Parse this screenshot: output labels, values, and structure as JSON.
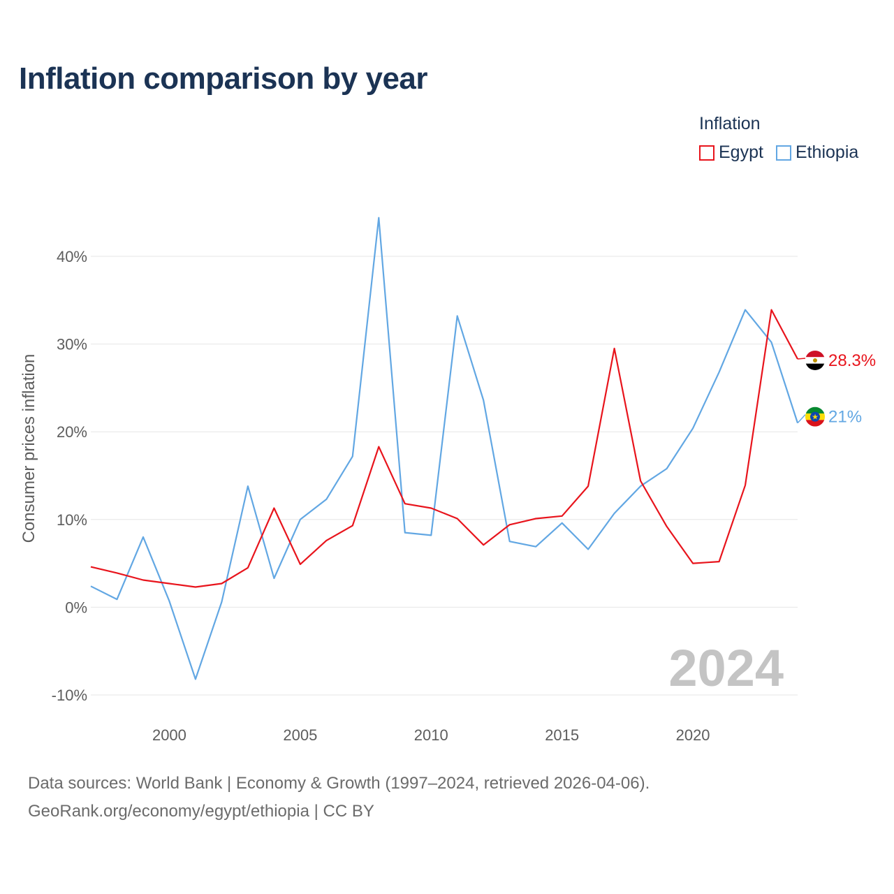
{
  "title": "Inflation comparison by year",
  "legend": {
    "title": "Inflation",
    "items": [
      {
        "name": "Egypt",
        "color": "#e8141c"
      },
      {
        "name": "Ethiopia",
        "color": "#62a7e3"
      }
    ]
  },
  "footer": {
    "line1": "Data sources: World Bank | Economy & Growth (1997–2024, retrieved 2026-04-06).",
    "line2": "GeoRank.org/economy/egypt/ethiopia | CC BY"
  },
  "chart_data": {
    "type": "line",
    "title": "Inflation comparison by year",
    "xlabel": "",
    "ylabel": "Consumer prices inflation",
    "xlim": [
      1997,
      2024
    ],
    "ylim": [
      -10,
      45
    ],
    "x_ticks": [
      2000,
      2005,
      2010,
      2015,
      2020
    ],
    "y_ticks": [
      -10,
      0,
      10,
      20,
      30,
      40
    ],
    "y_tick_labels": [
      "-10%",
      "0%",
      "10%",
      "20%",
      "30%",
      "40%"
    ],
    "grid": true,
    "watermark_year": "2024",
    "x": [
      1997,
      1998,
      1999,
      2000,
      2001,
      2002,
      2003,
      2004,
      2005,
      2006,
      2007,
      2008,
      2009,
      2010,
      2011,
      2012,
      2013,
      2014,
      2015,
      2016,
      2017,
      2018,
      2019,
      2020,
      2021,
      2022,
      2023,
      2024
    ],
    "series": [
      {
        "name": "Egypt",
        "color": "#e8141c",
        "end_label": "28.3%",
        "values": [
          4.6,
          3.9,
          3.1,
          2.7,
          2.3,
          2.7,
          4.5,
          11.3,
          4.9,
          7.6,
          9.3,
          18.3,
          11.8,
          11.3,
          10.1,
          7.1,
          9.4,
          10.1,
          10.4,
          13.8,
          29.5,
          14.4,
          9.2,
          5.0,
          5.2,
          13.9,
          33.9,
          28.3
        ]
      },
      {
        "name": "Ethiopia",
        "color": "#62a7e3",
        "end_label": "21%",
        "values": [
          2.4,
          0.9,
          8.0,
          0.7,
          -8.2,
          0.6,
          13.8,
          3.3,
          10.0,
          12.3,
          17.2,
          44.4,
          8.5,
          8.2,
          33.2,
          23.6,
          7.5,
          6.9,
          9.6,
          6.6,
          10.7,
          13.8,
          15.8,
          20.4,
          26.8,
          33.9,
          30.2,
          21.0
        ]
      }
    ]
  }
}
